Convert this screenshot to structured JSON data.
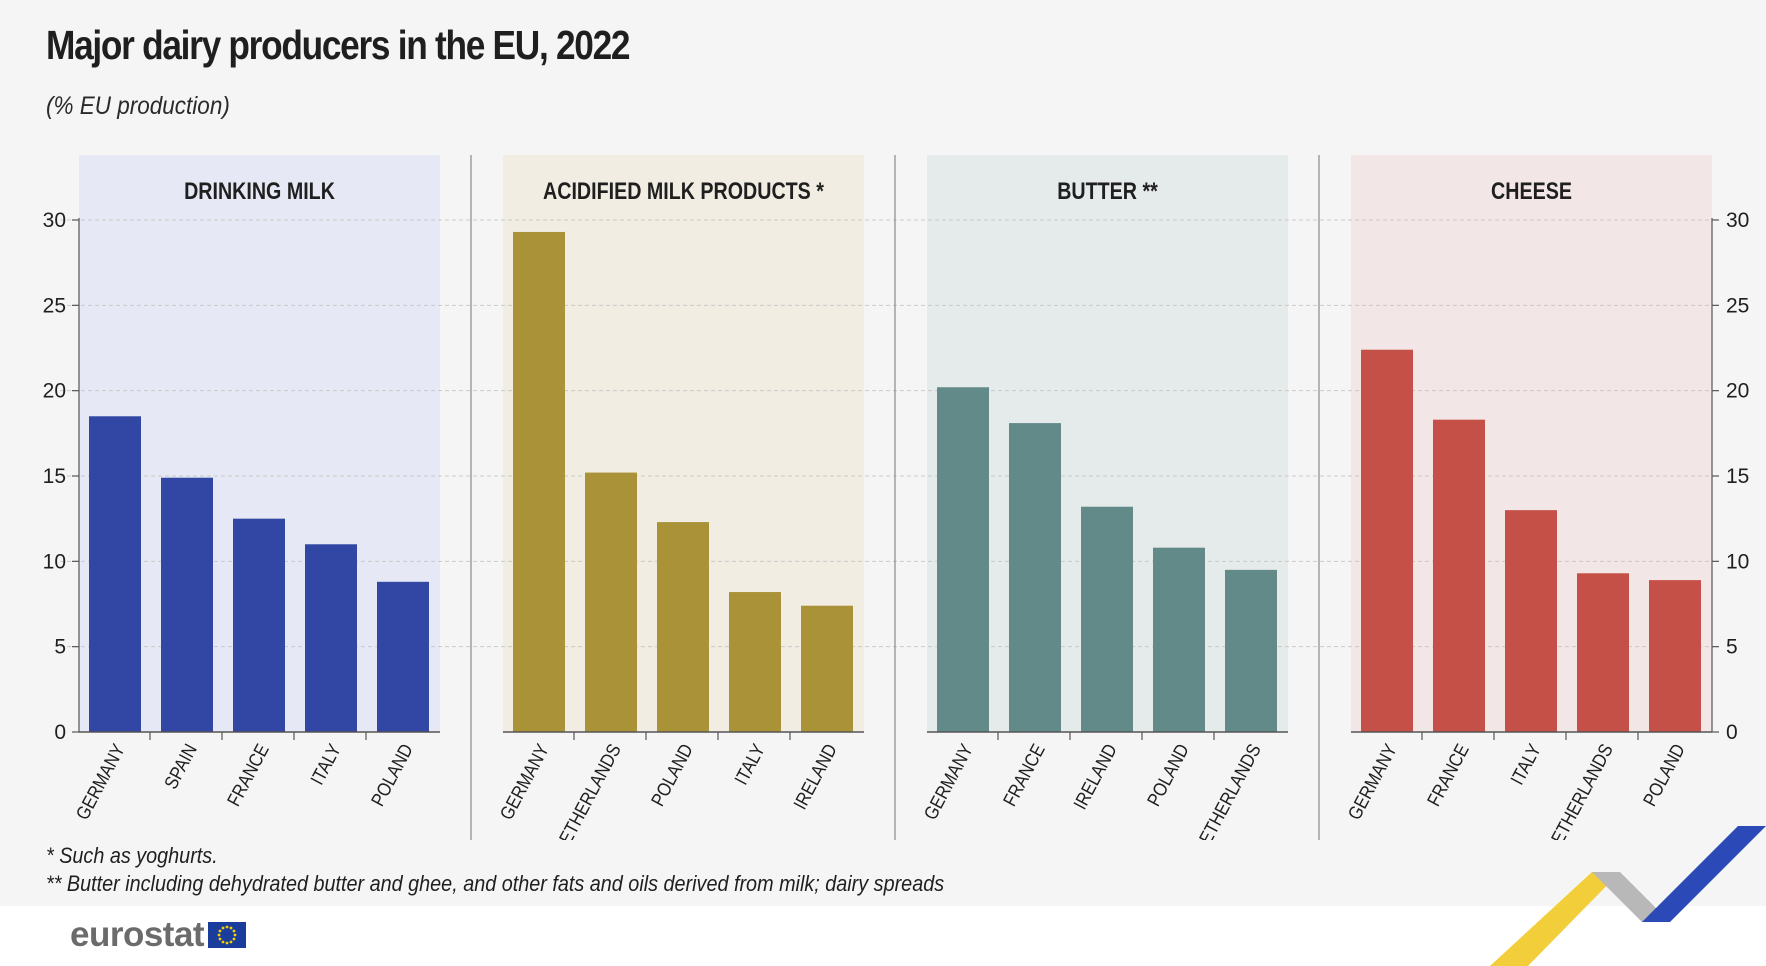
{
  "title": "Major dairy producers in the EU, 2022",
  "subtitle": "(% EU production)",
  "footnotes": [
    "*  Such as yoghurts.",
    "** Butter including dehydrated butter and ghee, and other fats and oils derived from milk; dairy spreads"
  ],
  "logo": {
    "text": "eurostat",
    "icon": "eu-flag-icon"
  },
  "chart_data": {
    "type": "bar",
    "ylim": [
      0,
      30
    ],
    "yticks": [
      0,
      5,
      10,
      15,
      20,
      25,
      30
    ],
    "grid": true,
    "panels": [
      {
        "title": "DRINKING MILK",
        "color": "#3247a3",
        "background": "#e6e9f5",
        "categories": [
          "GERMANY",
          "SPAIN",
          "FRANCE",
          "ITALY",
          "POLAND"
        ],
        "values": [
          18.5,
          14.9,
          12.5,
          11.0,
          8.8
        ]
      },
      {
        "title": "ACIDIFIED MILK PRODUCTS *",
        "color": "#a99237",
        "background": "#f1ede2",
        "categories": [
          "GERMANY",
          "NETHERLANDS",
          "POLAND",
          "ITALY",
          "IRELAND"
        ],
        "values": [
          29.3,
          15.2,
          12.3,
          8.2,
          7.4
        ]
      },
      {
        "title": "BUTTER **",
        "color": "#628a89",
        "background": "#e5eaea",
        "categories": [
          "GERMANY",
          "FRANCE",
          "IRELAND",
          "POLAND",
          "NETHERLANDS"
        ],
        "values": [
          20.2,
          18.1,
          13.2,
          10.8,
          9.5
        ]
      },
      {
        "title": "CHEESE",
        "color": "#c55047",
        "background": "#f3e6e6",
        "categories": [
          "GERMANY",
          "FRANCE",
          "ITALY",
          "NETHERLANDS",
          "POLAND"
        ],
        "values": [
          22.4,
          18.3,
          13.0,
          9.3,
          8.9
        ]
      }
    ]
  }
}
